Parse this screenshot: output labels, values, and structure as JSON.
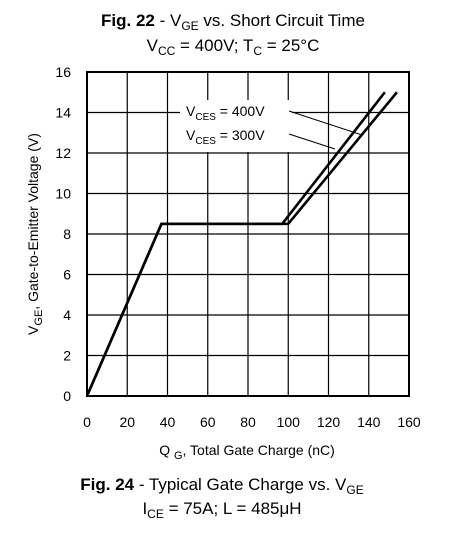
{
  "chart_data": {
    "type": "line",
    "title": {
      "fig": "Fig. 22",
      "rest": " - V",
      "sub": "GE",
      "rest2": " vs. Short Circuit Time"
    },
    "subtitle": {
      "a": "V",
      "a_sub": "CC",
      "b": " = 400V; T",
      "b_sub": "C",
      "c": " = 25°C"
    },
    "caption": {
      "fig": "Fig. 24",
      "rest": " - Typical Gate Charge vs. V",
      "sub": "GE"
    },
    "caption2": {
      "a": "I",
      "a_sub": "CE",
      "b": " = 75A; L = 485μH"
    },
    "xlabel": {
      "a": "Q ",
      "a_sub": "G",
      "b": ", Total Gate Charge (nC)"
    },
    "ylabel": {
      "a": "V",
      "a_sub": "GE",
      "b": ", Gate-to-Emitter Voltage (V)"
    },
    "xlim": [
      0,
      160
    ],
    "ylim": [
      0,
      16
    ],
    "xticks": [
      "0",
      "20",
      "40",
      "60",
      "80",
      "100",
      "120",
      "140",
      "160"
    ],
    "yticks": [
      "0",
      "2",
      "4",
      "6",
      "8",
      "10",
      "12",
      "14",
      "16"
    ],
    "grid": true,
    "series": [
      {
        "x": [
          0,
          37,
          97,
          148
        ],
        "y": [
          0,
          8.5,
          8.5,
          15
        ]
      },
      {
        "x": [
          0,
          37,
          100,
          154
        ],
        "y": [
          0,
          8.5,
          8.5,
          15
        ]
      }
    ],
    "annotations": [
      {
        "a": "V",
        "a_sub": "CES",
        "b": " = 400V",
        "x": 148,
        "y": 15
      },
      {
        "a": "V",
        "a_sub": "CES",
        "b": " = 300V",
        "x": 154,
        "y": 15
      }
    ]
  }
}
